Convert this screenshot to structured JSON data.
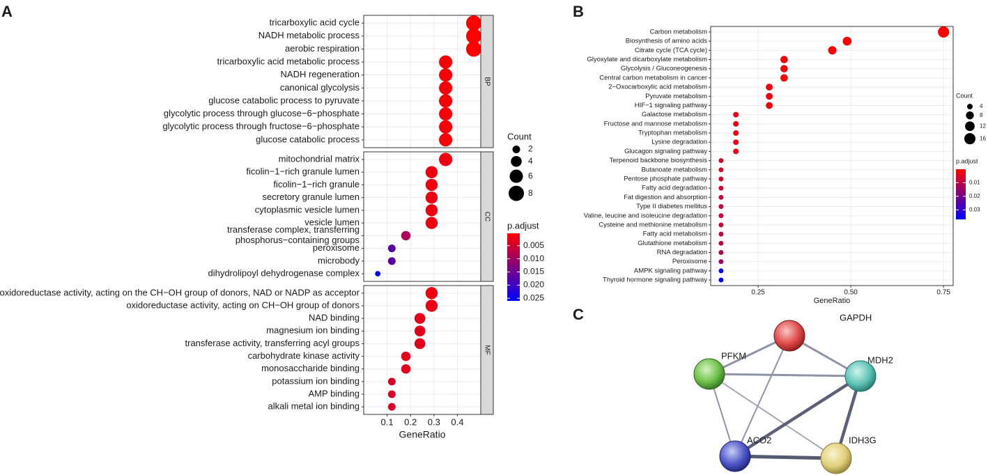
{
  "chart_data": [
    {
      "type": "dot",
      "panel": "A",
      "x_label": "GeneRatio",
      "xlim": [
        0.0,
        0.5
      ],
      "xticks": [
        0.1,
        0.2,
        0.3,
        0.4
      ],
      "facets": [
        {
          "label": "BP",
          "categories": [
            "tricarboxylic acid cycle",
            "NADH metabolic process",
            "aerobic respiration",
            "tricarboxylic acid metabolic process",
            "NADH regeneration",
            "canonical glycolysis",
            "glucose catabolic process to pyruvate",
            "glycolytic process through glucose−6−phosphate",
            "glycolytic process through fructose−6−phosphate",
            "glucose catabolic process"
          ],
          "values": [
            0.47,
            0.47,
            0.47,
            0.35,
            0.35,
            0.35,
            0.35,
            0.35,
            0.35,
            0.35
          ],
          "counts": [
            8,
            8,
            8,
            6,
            6,
            6,
            6,
            6,
            6,
            6
          ],
          "p_adjust": [
            0.0003,
            0.0003,
            0.0003,
            0.001,
            0.001,
            0.001,
            0.001,
            0.001,
            0.001,
            0.001
          ]
        },
        {
          "label": "CC",
          "categories": [
            "mitochondrial matrix",
            "ficolin−1−rich granule lumen",
            "ficolin−1−rich granule",
            "secretory granule lumen",
            "cytoplasmic vesicle lumen",
            "vesicle lumen",
            "transferase complex, transferring\nphosphorus−containing groups",
            "peroxisome",
            "microbody",
            "dihydrolipoyl dehydrogenase complex"
          ],
          "values": [
            0.35,
            0.29,
            0.29,
            0.29,
            0.29,
            0.29,
            0.18,
            0.12,
            0.12,
            0.06
          ],
          "counts": [
            6,
            5,
            5,
            5,
            5,
            5,
            3,
            2,
            2,
            1
          ],
          "p_adjust": [
            0.002,
            0.002,
            0.002,
            0.002,
            0.002,
            0.002,
            0.009,
            0.017,
            0.017,
            0.026
          ]
        },
        {
          "label": "MF",
          "categories": [
            "oxidoreductase activity, acting on the CH−OH group of donors, NAD or NADP as acceptor",
            "oxidoreductase activity, acting on CH−OH group of donors",
            "NAD binding",
            "magnesium ion binding",
            "transferase activity, transferring acyl groups",
            "carbohydrate kinase activity",
            "monosaccharide binding",
            "potassium ion binding",
            "AMP binding",
            "alkali metal ion binding"
          ],
          "values": [
            0.29,
            0.29,
            0.24,
            0.24,
            0.24,
            0.18,
            0.18,
            0.12,
            0.12,
            0.12
          ],
          "counts": [
            5,
            5,
            4,
            4,
            4,
            3,
            3,
            2,
            2,
            2
          ],
          "p_adjust": [
            0.002,
            0.002,
            0.003,
            0.003,
            0.003,
            0.003,
            0.003,
            0.004,
            0.004,
            0.004
          ]
        }
      ],
      "size_legend": {
        "title": "Count",
        "values": [
          2,
          4,
          6,
          8
        ]
      },
      "color_legend": {
        "title": "p.adjust",
        "ticks": [
          0.005,
          {
            "value": 0.01,
            "label": "0.010"
          },
          0.015,
          {
            "value": 0.02,
            "label": "0.020"
          },
          0.025
        ]
      }
    },
    {
      "type": "dot",
      "panel": "B",
      "x_label": "GeneRatio",
      "xlim": [
        0.122,
        0.776
      ],
      "xticks": [
        0.25,
        {
          "value": 0.5,
          "label": "0.50"
        },
        0.75
      ],
      "categories": [
        "Carbon metabolism",
        "Biosynthesis of amino acids",
        "Citrate cycle (TCA cycle)",
        "Glyoxylate and dicarboxylate metabolism",
        "Glycolysis / Gluconeogenesis",
        "Central carbon metabolism in cancer",
        "2−Oxocarboxylic acid metabolism",
        "Pyruvate metabolism",
        "HIF−1 signaling pathway",
        "Galactose metabolism",
        "Fructose and mannose metabolism",
        "Tryptophan metabolism",
        "Lysine degradation",
        "Glucagon signaling pathway",
        "Terpenoid backbone biosynthesis",
        "Butanoate metabolism",
        "Pentose phosphate pathway",
        "Fatty acid degradation",
        "Fat digestion and absorption",
        "Type II diabetes mellitus",
        "Valine, leucine and isoleucine degradation",
        "Cysteine and methionine metabolism",
        "Fatty acid metabolism",
        "Glutathione metabolism",
        "RNA degradation",
        "Peroxisome",
        "AMPK signaling pathway",
        "Thyroid hormone signaling pathway"
      ],
      "values": [
        0.75,
        0.49,
        0.45,
        0.32,
        0.32,
        0.32,
        0.28,
        0.28,
        0.28,
        0.19,
        0.19,
        0.19,
        0.19,
        0.19,
        0.15,
        0.15,
        0.15,
        0.15,
        0.15,
        0.15,
        0.15,
        0.15,
        0.15,
        0.15,
        0.15,
        0.15,
        0.15,
        0.15
      ],
      "counts": [
        16,
        10,
        9,
        7,
        7,
        7,
        6,
        6,
        6,
        4,
        4,
        4,
        4,
        4,
        3,
        3,
        3,
        3,
        3,
        3,
        3,
        3,
        3,
        3,
        3,
        3,
        3,
        3
      ],
      "p_adjust": [
        0.0001,
        0.0005,
        0.0005,
        0.001,
        0.001,
        0.001,
        0.002,
        0.002,
        0.002,
        0.003,
        0.003,
        0.003,
        0.003,
        0.003,
        0.006,
        0.006,
        0.006,
        0.006,
        0.008,
        0.008,
        0.008,
        0.008,
        0.008,
        0.01,
        0.012,
        0.015,
        0.037,
        0.037
      ],
      "size_legend": {
        "title": "Count",
        "values": [
          4,
          8,
          12,
          16
        ]
      },
      "color_legend": {
        "title": "p.adjust",
        "ticks": [
          0.01,
          0.02,
          0.03
        ]
      }
    }
  ],
  "network": {
    "panel": "C",
    "nodes": [
      "GAPDH",
      "PFKM",
      "MDH2",
      "ACO2",
      "IDH3G"
    ]
  }
}
